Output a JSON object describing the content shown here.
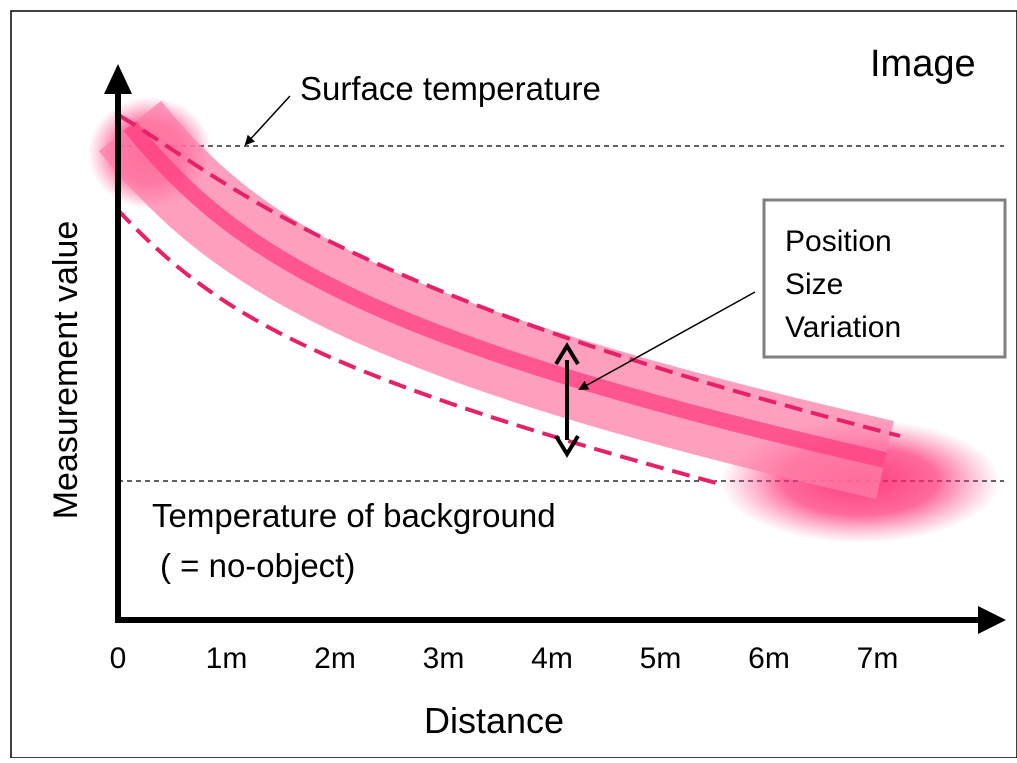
{
  "corner_label": "Image",
  "axes": {
    "y_label": "Measurement value",
    "x_label": "Distance",
    "x_ticks": [
      "0",
      "1m",
      "2m",
      "3m",
      "4m",
      "5m",
      "6m",
      "7m"
    ]
  },
  "annotations": {
    "surface": "Surface temperature",
    "background_line1": "Temperature of background",
    "background_line2": "( = no-object)",
    "box_lines": [
      "Position",
      "Size",
      "Variation"
    ]
  },
  "colors": {
    "band": "#ff7fa8",
    "center": "#ff3d7f",
    "dashed": "#e8206a",
    "blob": "#ff1a66"
  }
}
